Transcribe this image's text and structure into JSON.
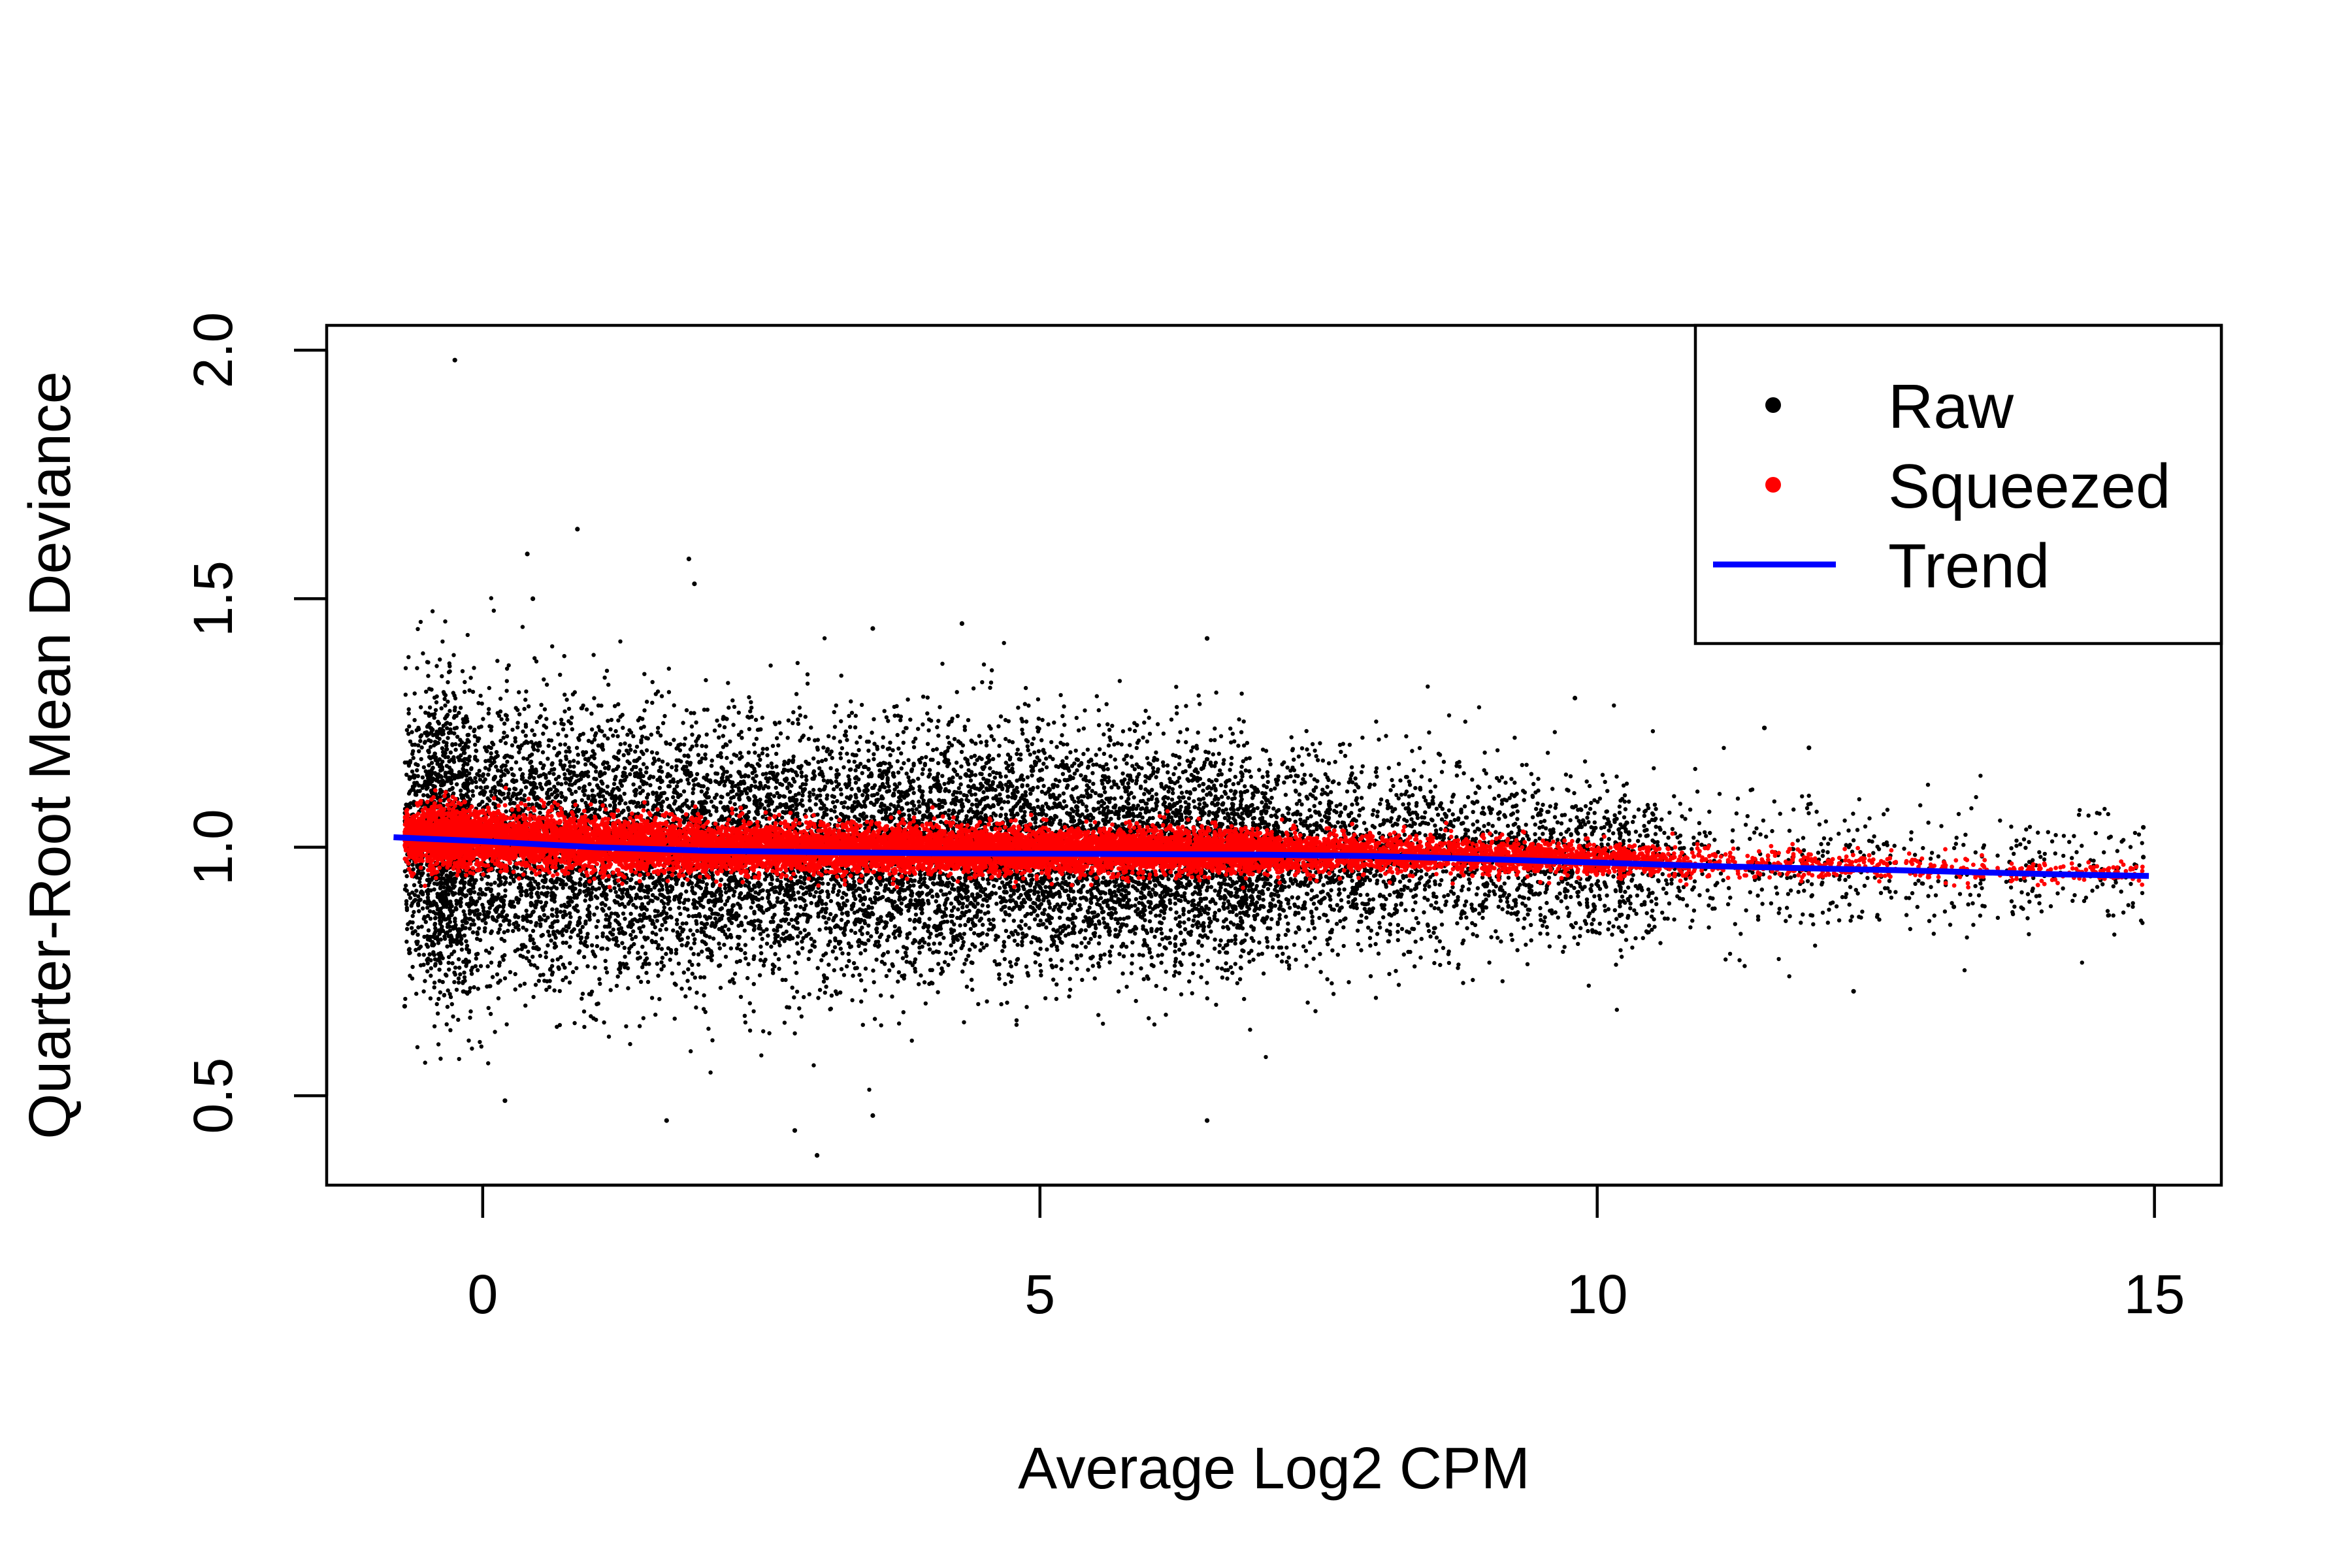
{
  "chart_data": {
    "type": "scatter",
    "title": "",
    "xlabel": "Average Log2 CPM",
    "ylabel": "Quarter-Root Mean Deviance",
    "xlim": [
      -1.4,
      15.6
    ],
    "ylim": [
      0.32,
      2.05
    ],
    "x_ticks": [
      0,
      5,
      10,
      15
    ],
    "y_ticks": [
      0.5,
      1.0,
      1.5,
      2.0
    ],
    "x_tick_labels": [
      "0",
      "5",
      "10",
      "15"
    ],
    "y_tick_labels": [
      "0.5",
      "1.0",
      "1.5",
      "2.0"
    ],
    "grid": false,
    "legend": {
      "position": "top-right",
      "entries": [
        "Raw",
        "Squeezed",
        "Trend"
      ]
    },
    "series": [
      {
        "name": "Raw",
        "kind": "points",
        "color": "#000000",
        "x_range": [
          -0.8,
          14.95
        ],
        "dense_x_range": [
          -0.6,
          9.0
        ],
        "y_center": 0.99,
        "y_spread_at_low_x": [
          0.62,
          1.45
        ],
        "y_spread_at_high_x": [
          0.75,
          1.25
        ],
        "outliers": [
          {
            "x": -0.25,
            "y": 1.98
          },
          {
            "x": 0.85,
            "y": 1.64
          },
          {
            "x": 0.4,
            "y": 1.59
          },
          {
            "x": 1.85,
            "y": 1.58
          },
          {
            "x": 1.9,
            "y": 1.53
          },
          {
            "x": 0.45,
            "y": 1.5
          },
          {
            "x": 4.3,
            "y": 1.45
          },
          {
            "x": 3.5,
            "y": 1.44
          },
          {
            "x": 6.5,
            "y": 1.42
          },
          {
            "x": 9.8,
            "y": 1.3
          },
          {
            "x": 11.5,
            "y": 1.24
          },
          {
            "x": 11.9,
            "y": 1.2
          },
          {
            "x": 12.3,
            "y": 0.71
          },
          {
            "x": 13.2,
            "y": 0.88
          },
          {
            "x": 13.7,
            "y": 0.97
          },
          {
            "x": 14.1,
            "y": 0.94
          },
          {
            "x": 14.9,
            "y": 1.04
          },
          {
            "x": 14.9,
            "y": 0.98
          },
          {
            "x": 3.0,
            "y": 0.38
          },
          {
            "x": 2.8,
            "y": 0.43
          },
          {
            "x": 6.5,
            "y": 0.45
          },
          {
            "x": 1.65,
            "y": 0.45
          },
          {
            "x": 3.5,
            "y": 0.46
          },
          {
            "x": -0.7,
            "y": 0.68
          },
          {
            "x": 0.2,
            "y": 0.49
          }
        ]
      },
      {
        "name": "Squeezed",
        "kind": "points",
        "color": "#ff0000",
        "x_range": [
          -0.8,
          14.95
        ],
        "y_center": 0.99,
        "y_spread_at_low_x": [
          0.95,
          1.12
        ],
        "y_spread_at_high_x": [
          0.94,
          1.0
        ]
      },
      {
        "name": "Trend",
        "kind": "line",
        "color": "#0000ff",
        "x": [
          -0.8,
          0,
          1,
          2,
          3,
          4,
          5,
          6,
          7,
          8,
          9,
          10,
          11,
          12,
          13,
          14,
          14.95
        ],
        "y": [
          1.02,
          1.012,
          1.0,
          0.993,
          0.99,
          0.988,
          0.987,
          0.986,
          0.985,
          0.982,
          0.976,
          0.969,
          0.962,
          0.957,
          0.952,
          0.946,
          0.942
        ]
      }
    ]
  }
}
